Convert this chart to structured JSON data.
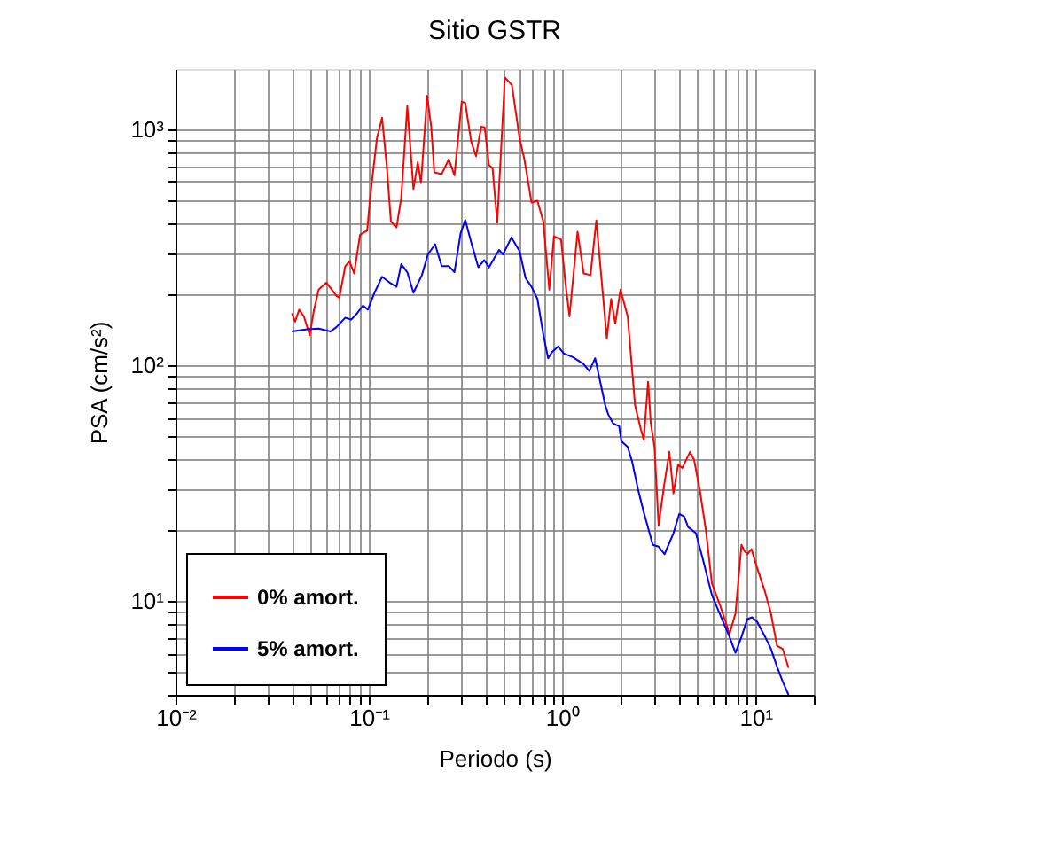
{
  "chart_data": {
    "type": "line",
    "title": "Sitio GSTR",
    "xlabel": "Periodo (s)",
    "ylabel": "PSA (cm/s²)",
    "log": "xy",
    "grid": true,
    "legend": "bottom left",
    "line_style": "solid",
    "marker": "none",
    "xlim": [
      0.01,
      20
    ],
    "ylim": [
      4,
      1800
    ],
    "xticks": [
      {
        "value": 0.01,
        "label": "10⁻²"
      },
      {
        "value": 0.02,
        "label": null
      },
      {
        "value": 0.03,
        "label": null
      },
      {
        "value": 0.04,
        "label": null
      },
      {
        "value": 0.05,
        "label": null
      },
      {
        "value": 0.06,
        "label": null
      },
      {
        "value": 0.07,
        "label": null
      },
      {
        "value": 0.08,
        "label": null
      },
      {
        "value": 0.09,
        "label": null
      },
      {
        "value": 0.1,
        "label": "10⁻¹"
      },
      {
        "value": 0.2,
        "label": null
      },
      {
        "value": 0.3,
        "label": null
      },
      {
        "value": 0.4,
        "label": null
      },
      {
        "value": 0.5,
        "label": null
      },
      {
        "value": 0.6,
        "label": null
      },
      {
        "value": 0.7,
        "label": null
      },
      {
        "value": 0.8,
        "label": null
      },
      {
        "value": 0.9,
        "label": null
      },
      {
        "value": 1,
        "label": "10⁰"
      },
      {
        "value": 2,
        "label": null
      },
      {
        "value": 3,
        "label": null
      },
      {
        "value": 4,
        "label": null
      },
      {
        "value": 5,
        "label": null
      },
      {
        "value": 6,
        "label": null
      },
      {
        "value": 7,
        "label": null
      },
      {
        "value": 8,
        "label": null
      },
      {
        "value": 9,
        "label": null
      },
      {
        "value": 10,
        "label": "10¹"
      },
      {
        "value": 20,
        "label": null
      }
    ],
    "yticks": [
      {
        "value": 4,
        "label": null
      },
      {
        "value": 5,
        "label": null
      },
      {
        "value": 6,
        "label": null
      },
      {
        "value": 7,
        "label": null
      },
      {
        "value": 8,
        "label": null
      },
      {
        "value": 9,
        "label": null
      },
      {
        "value": 10,
        "label": "10¹"
      },
      {
        "value": 20,
        "label": null
      },
      {
        "value": 30,
        "label": null
      },
      {
        "value": 40,
        "label": null
      },
      {
        "value": 50,
        "label": null
      },
      {
        "value": 60,
        "label": null
      },
      {
        "value": 70,
        "label": null
      },
      {
        "value": 80,
        "label": null
      },
      {
        "value": 90,
        "label": null
      },
      {
        "value": 100,
        "label": "10²"
      },
      {
        "value": 200,
        "label": null
      },
      {
        "value": 300,
        "label": null
      },
      {
        "value": 400,
        "label": null
      },
      {
        "value": 500,
        "label": null
      },
      {
        "value": 600,
        "label": null
      },
      {
        "value": 700,
        "label": null
      },
      {
        "value": 800,
        "label": null
      },
      {
        "value": 900,
        "label": null
      },
      {
        "value": 1000,
        "label": "10³"
      }
    ],
    "series": [
      {
        "name": "0% amort.",
        "color": "#ff0000",
        "x": [
          0.04,
          0.0415,
          0.0436,
          0.0461,
          0.0494,
          0.0519,
          0.055,
          0.0603,
          0.0679,
          0.0703,
          0.0755,
          0.0793,
          0.0839,
          0.09,
          0.098,
          0.1014,
          0.11,
          0.117,
          0.124,
          0.13,
          0.139,
          0.147,
          0.158,
          0.17,
          0.179,
          0.186,
          0.2,
          0.21,
          0.218,
          0.238,
          0.259,
          0.277,
          0.302,
          0.315,
          0.338,
          0.358,
          0.381,
          0.397,
          0.418,
          0.436,
          0.461,
          0.505,
          0.549,
          0.602,
          0.637,
          0.694,
          0.744,
          0.798,
          0.857,
          0.906,
          0.986,
          1.04,
          1.09,
          1.2,
          1.29,
          1.4,
          1.5,
          1.7,
          1.79,
          1.88,
          2.0,
          2.18,
          2.38,
          2.55,
          2.64,
          2.78,
          2.87,
          3.0,
          3.15,
          3.38,
          3.58,
          3.76,
          3.97,
          4.18,
          4.58,
          4.81,
          5.16,
          5.53,
          5.94,
          6.6,
          7.33,
          7.87,
          8.45,
          8.75,
          9.06,
          9.52,
          10.1,
          11.2,
          12.0,
          12.9,
          13.8,
          14.8
        ],
        "values": [
          166,
          153,
          172,
          161,
          134,
          170,
          209,
          224,
          197,
          193,
          263,
          276,
          245,
          357,
          372,
          512,
          914,
          1120,
          684,
          406,
          384,
          512,
          1256,
          558,
          725,
          592,
          1387,
          1026,
          657,
          646,
          746,
          638,
          1309,
          1294,
          888,
          769,
          1026,
          1020,
          705,
          684,
          402,
          1660,
          1540,
          914,
          746,
          489,
          498,
          406,
          209,
          352,
          341,
          221,
          161,
          368,
          245,
          241,
          411,
          130,
          191,
          150,
          209,
          161,
          67.5,
          53.5,
          48.2,
          85.1,
          56.7,
          45.0,
          20.9,
          31.8,
          42.9,
          28.6,
          37.8,
          36.7,
          42.9,
          39.6,
          29.1,
          20.0,
          11.9,
          9.42,
          7.25,
          8.87,
          17.3,
          16.3,
          15.8,
          16.6,
          14.1,
          10.9,
          8.87,
          6.46,
          6.27,
          5.21
        ]
      },
      {
        "name": "5% amort.",
        "color": "#0000ff",
        "x": [
          0.04,
          0.0478,
          0.055,
          0.0633,
          0.0679,
          0.0755,
          0.081,
          0.0869,
          0.0932,
          0.0987,
          0.107,
          0.117,
          0.128,
          0.139,
          0.147,
          0.158,
          0.17,
          0.188,
          0.202,
          0.22,
          0.228,
          0.238,
          0.259,
          0.277,
          0.298,
          0.315,
          0.338,
          0.368,
          0.395,
          0.418,
          0.471,
          0.494,
          0.546,
          0.602,
          0.646,
          0.694,
          0.744,
          0.798,
          0.845,
          0.887,
          0.952,
          1.02,
          1.14,
          1.29,
          1.38,
          1.48,
          1.67,
          1.73,
          1.83,
          1.97,
          2.02,
          2.18,
          2.3,
          2.46,
          2.64,
          2.94,
          3.15,
          3.38,
          3.76,
          4.03,
          4.27,
          4.48,
          4.91,
          5.34,
          5.94,
          6.6,
          7.33,
          7.87,
          8.45,
          9.06,
          9.59,
          10.2,
          11.2,
          12.0,
          12.9,
          13.8,
          14.8
        ],
        "values": [
          139,
          142,
          143,
          139,
          145,
          159,
          156,
          166,
          179,
          172,
          203,
          237,
          224,
          215,
          268,
          248,
          203,
          241,
          295,
          326,
          295,
          263,
          263,
          248,
          362,
          413,
          332,
          260,
          279,
          260,
          308,
          295,
          348,
          304,
          234,
          215,
          191,
          135,
          107,
          114,
          120,
          112,
          108,
          101,
          94.4,
          107,
          67.5,
          61.8,
          56.7,
          55.1,
          47.6,
          45.0,
          38.9,
          30.0,
          23.8,
          17.3,
          17.0,
          15.8,
          19.4,
          23.4,
          22.8,
          20.6,
          19.4,
          15.0,
          10.6,
          8.63,
          7.04,
          6.03,
          7.04,
          8.38,
          8.53,
          8.15,
          7.04,
          6.27,
          5.27,
          4.56,
          4.0
        ]
      }
    ]
  }
}
